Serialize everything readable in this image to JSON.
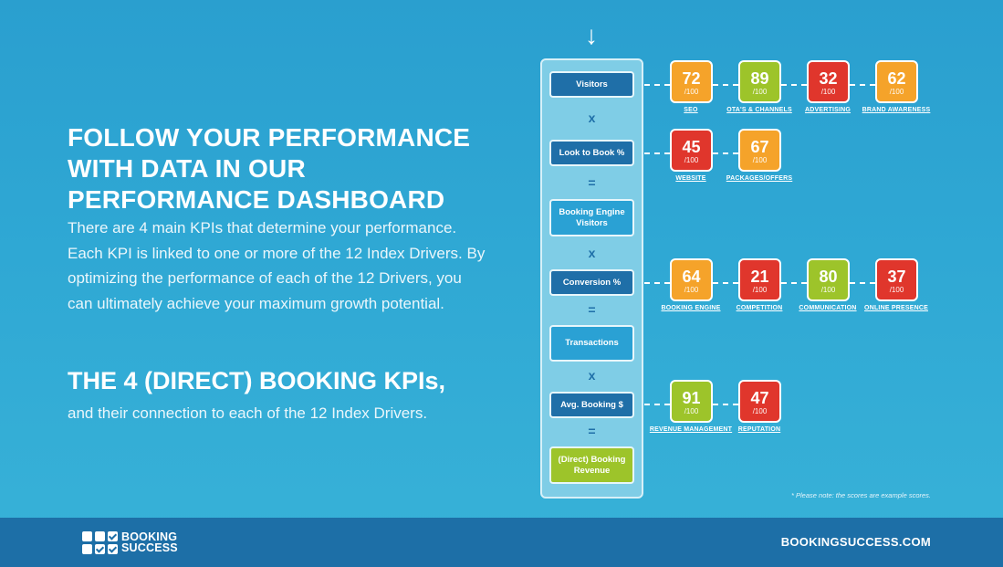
{
  "headline": [
    "FOLLOW YOUR PERFORMANCE",
    "WITH DATA IN OUR",
    "PERFORMANCE DASHBOARD"
  ],
  "intro": "There are 4 main KPIs that determine your performance. Each KPI is linked to one or more of the 12 Index Drivers. By optimizing the performance of each of the 12 Drivers, you can ultimately achieve your maximum growth potential.",
  "kpi_section": {
    "title": "THE 4 (DIRECT) BOOKING KPIs,",
    "subtitle": "and their connection to each of the 12 Index Drivers."
  },
  "arrow_glyph": "↓",
  "kpis": [
    {
      "label": "Visitors",
      "style": "dark"
    },
    {
      "op": "x"
    },
    {
      "label": "Look to Book %",
      "style": "dark"
    },
    {
      "op": "="
    },
    {
      "label": "Booking Engine Visitors",
      "style": "light"
    },
    {
      "op": "x"
    },
    {
      "label": "Conversion %",
      "style": "dark"
    },
    {
      "op": "="
    },
    {
      "label": "Transactions",
      "style": "light"
    },
    {
      "op": "x"
    },
    {
      "label": "Avg. Booking $",
      "style": "dark"
    },
    {
      "op": "="
    },
    {
      "label": "(Direct) Booking Revenue",
      "style": "green"
    }
  ],
  "drivers": {
    "visitors": [
      {
        "score": "72",
        "max": "/100",
        "label": "SEO",
        "color": "#f5a32a"
      },
      {
        "score": "89",
        "max": "/100",
        "label": "OTA'S & CHANNELS",
        "color": "#9dc42a"
      },
      {
        "score": "32",
        "max": "/100",
        "label": "ADVERTISING",
        "color": "#e0362c"
      },
      {
        "score": "62",
        "max": "/100",
        "label": "BRAND AWARENESS",
        "color": "#f5a32a"
      }
    ],
    "look_to_book": [
      {
        "score": "45",
        "max": "/100",
        "label": "WEBSITE",
        "color": "#e0362c"
      },
      {
        "score": "67",
        "max": "/100",
        "label": "PACKAGES/OFFERS",
        "color": "#f5a32a"
      }
    ],
    "conversion": [
      {
        "score": "64",
        "max": "/100",
        "label": "BOOKING ENGINE",
        "color": "#f5a32a"
      },
      {
        "score": "21",
        "max": "/100",
        "label": "COMPETITION",
        "color": "#e0362c"
      },
      {
        "score": "80",
        "max": "/100",
        "label": "COMMUNICATION",
        "color": "#9dc42a"
      },
      {
        "score": "37",
        "max": "/100",
        "label": "ONLINE PRESENCE",
        "color": "#e0362c"
      }
    ],
    "avg_booking": [
      {
        "score": "91",
        "max": "/100",
        "label": "REVENUE MANAGEMENT",
        "color": "#9dc42a"
      },
      {
        "score": "47",
        "max": "/100",
        "label": "REPUTATION",
        "color": "#e0362c"
      }
    ]
  },
  "note": "* Please note: the scores are example scores.",
  "footer": {
    "logo_line1": "BOOKING",
    "logo_line2": "SUCCESS",
    "site": "BOOKINGSUCCESS.COM"
  }
}
